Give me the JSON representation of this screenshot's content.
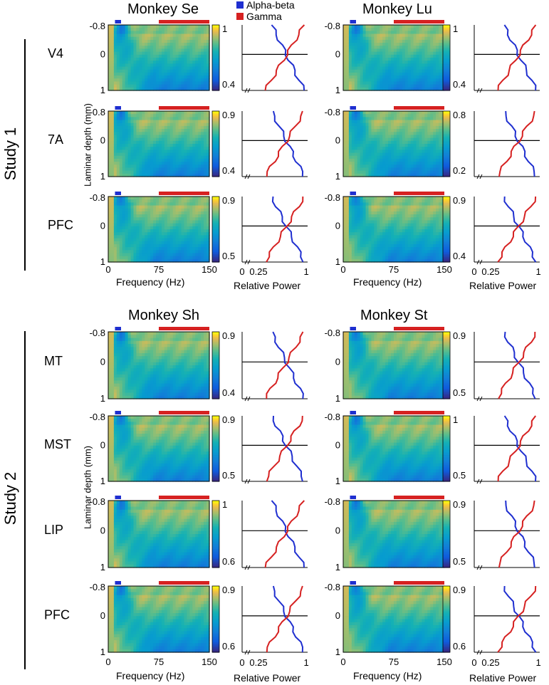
{
  "legend": [
    {
      "label": "Alpha-beta",
      "color": "#1f2fd0"
    },
    {
      "label": "Gamma",
      "color": "#d62121"
    }
  ],
  "studies": [
    "Study 1",
    "Study 2"
  ],
  "monkeys": [
    "Monkey Se",
    "Monkey Lu",
    "Monkey Sh",
    "Monkey St"
  ],
  "axis_labels": {
    "ylabel": "Laminar depth (mm)",
    "xlabel_freq": "Frequency (Hz)",
    "xlabel_power": "Relative Power"
  },
  "chart_data": {
    "type": "heatmap",
    "freq_ticks": [
      "0",
      "75",
      "150"
    ],
    "depth_ticks": [
      "-0.8",
      "0",
      "1"
    ],
    "power_ticks": [
      "0",
      "0.25",
      "1"
    ],
    "band_colors": {
      "alpha_beta": "#1f2fd0",
      "gamma": "#d62121"
    },
    "bands": {
      "alpha_beta_hz": [
        10,
        19
      ],
      "gamma_hz": [
        75,
        150
      ]
    },
    "colormap": "parula",
    "panels": [
      {
        "study": "Study 1",
        "monkey": "Monkey Se",
        "area": "V4",
        "cbar": [
          "1",
          "0.4"
        ]
      },
      {
        "study": "Study 1",
        "monkey": "Monkey Se",
        "area": "7A",
        "cbar": [
          "0.9",
          "0.4"
        ]
      },
      {
        "study": "Study 1",
        "monkey": "Monkey Se",
        "area": "PFC",
        "cbar": [
          "0.9",
          "0.5"
        ]
      },
      {
        "study": "Study 1",
        "monkey": "Monkey Lu",
        "area": "V4",
        "cbar": [
          "1",
          "0.4"
        ]
      },
      {
        "study": "Study 1",
        "monkey": "Monkey Lu",
        "area": "7A",
        "cbar": [
          "0.8",
          "0.2"
        ]
      },
      {
        "study": "Study 1",
        "monkey": "Monkey Lu",
        "area": "PFC",
        "cbar": [
          "0.9",
          "0.4"
        ]
      },
      {
        "study": "Study 2",
        "monkey": "Monkey Sh",
        "area": "MT",
        "cbar": [
          "0.9",
          "0.4"
        ]
      },
      {
        "study": "Study 2",
        "monkey": "Monkey Sh",
        "area": "MST",
        "cbar": [
          "0.9",
          "0.5"
        ]
      },
      {
        "study": "Study 2",
        "monkey": "Monkey Sh",
        "area": "LIP",
        "cbar": [
          "1",
          "0.6"
        ]
      },
      {
        "study": "Study 2",
        "monkey": "Monkey Sh",
        "area": "PFC",
        "cbar": [
          "0.9",
          "0.6"
        ]
      },
      {
        "study": "Study 2",
        "monkey": "Monkey St",
        "area": "MT",
        "cbar": [
          "0.9",
          "0.5"
        ]
      },
      {
        "study": "Study 2",
        "monkey": "Monkey St",
        "area": "MST",
        "cbar": [
          "1",
          "0.5"
        ]
      },
      {
        "study": "Study 2",
        "monkey": "Monkey St",
        "area": "LIP",
        "cbar": [
          "0.9",
          "0.5"
        ]
      },
      {
        "study": "Study 2",
        "monkey": "Monkey St",
        "area": "PFC",
        "cbar": [
          "0.9",
          "0.6"
        ]
      }
    ]
  }
}
